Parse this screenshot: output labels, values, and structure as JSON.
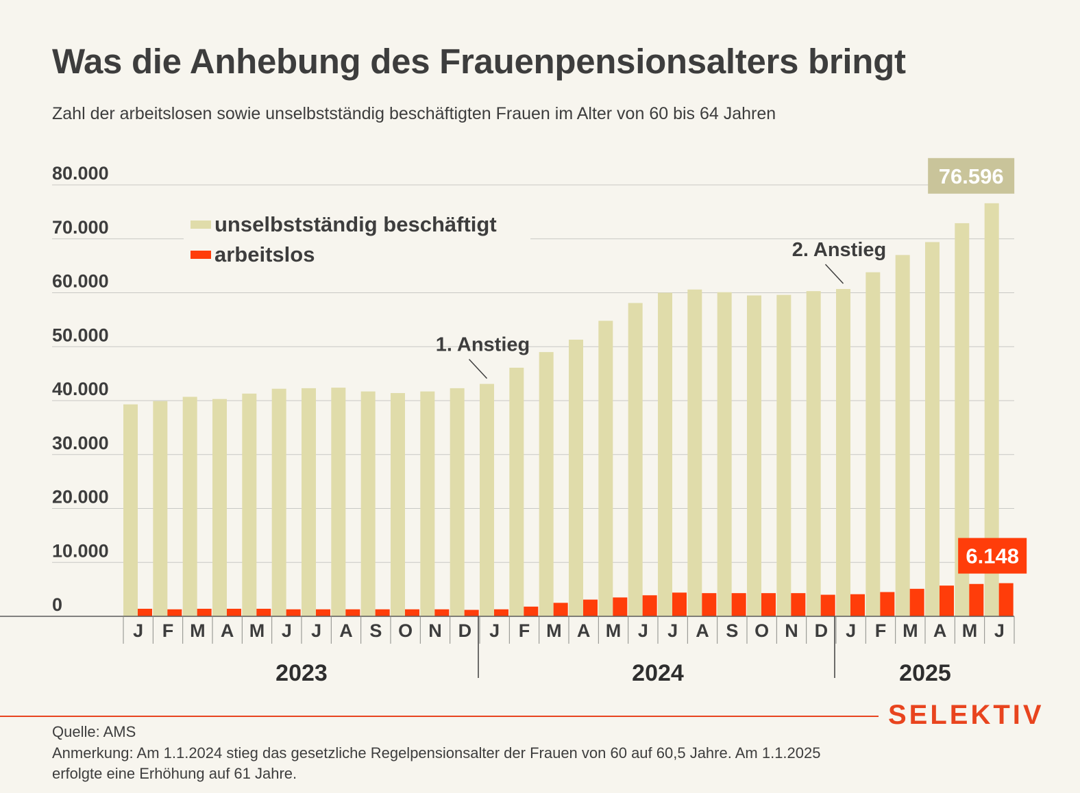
{
  "title": "Was die Anhebung des Frauenpensionsalters bringt",
  "subtitle": "Zahl der arbeitslosen sowie unselbstständig beschäftigten Frauen im Alter von 60 bis 64 Jahren",
  "brand": "SELEKTIV",
  "source": "Quelle: AMS",
  "note": "Anmerkung: Am 1.1.2024 stieg das gesetzliche Regelpensionsalter der Frauen von 60 auf 60,5 Jahre. Am 1.1.2025 erfolgte eine Erhöhung auf 61 Jahre.",
  "colors": {
    "employed": "#e0dcaa",
    "unemployed": "#ff3d0a",
    "employed_label_bg": "#c9c49a",
    "unemployed_label_bg": "#ff3d0a"
  },
  "chart_data": {
    "type": "bar",
    "categories": [
      "J",
      "F",
      "M",
      "A",
      "M",
      "J",
      "J",
      "A",
      "S",
      "O",
      "N",
      "D",
      "J",
      "F",
      "M",
      "A",
      "M",
      "J",
      "J",
      "A",
      "S",
      "O",
      "N",
      "D",
      "J",
      "F",
      "M",
      "A",
      "M",
      "J"
    ],
    "years": [
      {
        "label": "2023",
        "start": 0,
        "end": 11
      },
      {
        "label": "2024",
        "start": 12,
        "end": 23
      },
      {
        "label": "2025",
        "start": 24,
        "end": 29
      }
    ],
    "series": [
      {
        "name": "unselbstständig beschäftigt",
        "values": [
          39300,
          39900,
          40700,
          40300,
          41300,
          42200,
          42300,
          42400,
          41700,
          41400,
          41700,
          42300,
          43100,
          46100,
          49000,
          51300,
          54800,
          58100,
          60000,
          60600,
          60100,
          59500,
          59600,
          60300,
          60700,
          63800,
          67000,
          69400,
          72900,
          76596
        ]
      },
      {
        "name": "arbeitslos",
        "values": [
          1400,
          1300,
          1400,
          1400,
          1400,
          1300,
          1300,
          1300,
          1300,
          1300,
          1300,
          1200,
          1300,
          1800,
          2500,
          3100,
          3500,
          3900,
          4400,
          4300,
          4300,
          4300,
          4300,
          4000,
          4100,
          4500,
          5100,
          5700,
          6000,
          6148
        ]
      }
    ],
    "y_ticks": [
      "80.000",
      "70.000",
      "60.000",
      "50.000",
      "40.000",
      "30.000",
      "20.000",
      "10.000",
      "0"
    ],
    "ylim": [
      0,
      80000
    ],
    "grid": true,
    "legend_position": "top-left",
    "annotations": [
      {
        "text": "1. Anstieg",
        "index": 12
      },
      {
        "text": "2. Anstieg",
        "index": 24
      }
    ],
    "value_labels": [
      {
        "text": "76.596",
        "series": 0,
        "index": 29
      },
      {
        "text": "6.148",
        "series": 1,
        "index": 29
      }
    ]
  }
}
